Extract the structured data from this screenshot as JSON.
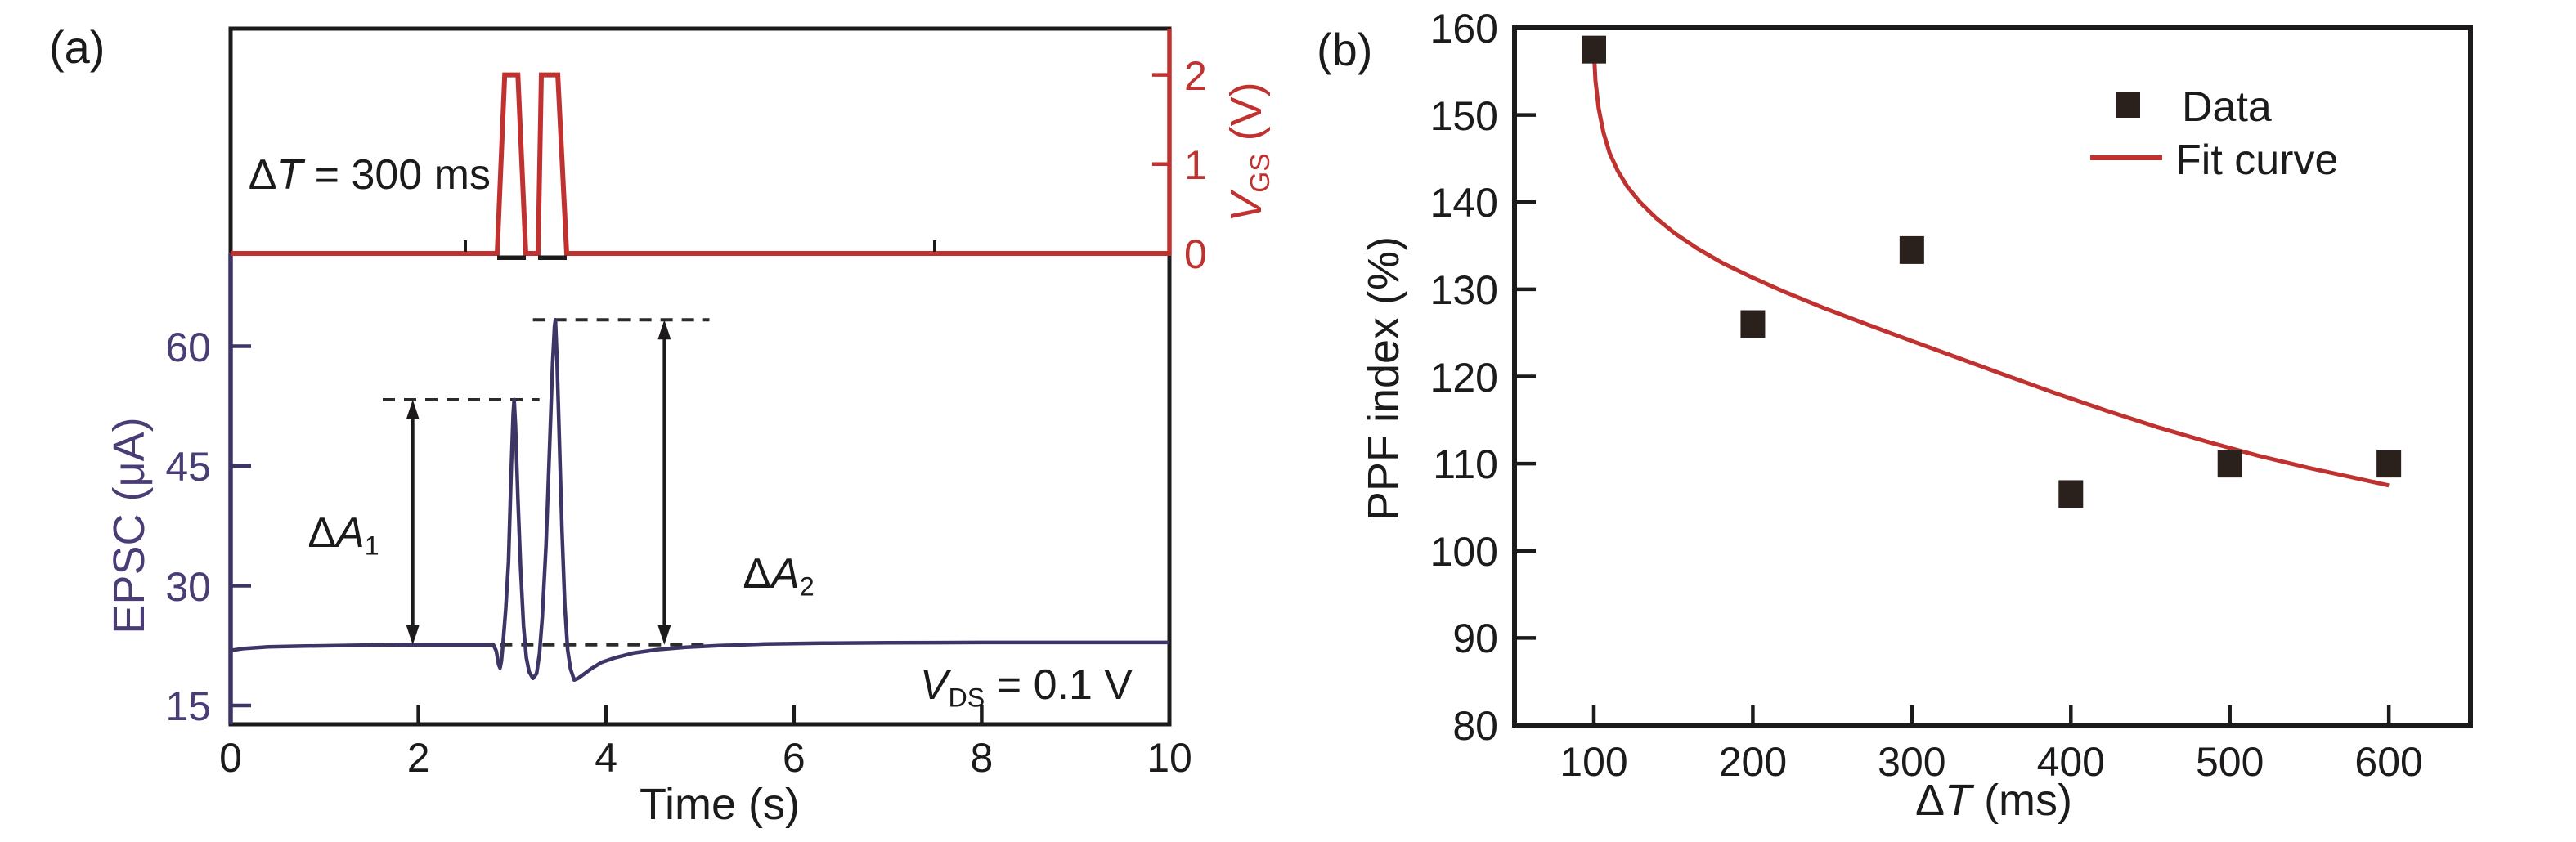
{
  "colors": {
    "red": "#c0322f",
    "purple_line": "#3e3567",
    "purple_text": "#4a3c75",
    "black": "#1c1a1a",
    "marker": "#2a211d",
    "background": "#ffffff"
  },
  "panel_a": {
    "label": "(a)",
    "pulse_annotation": {
      "sym": "Δ",
      "var": "T",
      "rest": " = 300 ms"
    },
    "vds_annotation": {
      "var": "V",
      "sub": "DS",
      "rest": " = 0.1 V"
    },
    "delta_a1": {
      "sym": "Δ",
      "var": "A",
      "sub": "1"
    },
    "delta_a2": {
      "sym": "Δ",
      "var": "A",
      "sub": "2"
    },
    "xlabel": "Time (s)",
    "ylabel_left": "EPSC (μA)",
    "ylabel_right": {
      "var": "V",
      "sub": "GS",
      "rest": " (V)"
    }
  },
  "panel_b": {
    "label": "(b)",
    "xlabel": {
      "sym": "Δ",
      "var": "T",
      "rest": " (ms)"
    },
    "ylabel": "PPF index (%)",
    "legend": {
      "data": "Data",
      "fit": "Fit curve"
    }
  },
  "chart_data": [
    {
      "panel": "a",
      "type": "line",
      "title": "",
      "xlabel": "Time (s)",
      "x_range": [
        0,
        10
      ],
      "x_ticks": [
        0,
        2,
        4,
        6,
        8,
        10
      ],
      "y_left": {
        "label": "EPSC (µA)",
        "ticks": [
          15,
          30,
          45,
          60
        ],
        "color_role": "purple"
      },
      "y_right": {
        "label": "VGS (V)",
        "ticks": [
          0,
          1,
          2
        ],
        "color_role": "red",
        "range": [
          0,
          2.5
        ]
      },
      "annotations": {
        "pulse_interval": "ΔT = 300 ms",
        "bias": "VDS = 0.1 V",
        "amp1": "ΔA1",
        "amp2": "ΔA2"
      },
      "vgs_series": {
        "name": "VGS pulses",
        "units": "V",
        "pulse_amplitude": 2,
        "points": [
          [
            0,
            0
          ],
          [
            2.84,
            0
          ],
          [
            2.92,
            2
          ],
          [
            3.06,
            2
          ],
          [
            3.145,
            0
          ],
          [
            3.275,
            0
          ],
          [
            3.31,
            2
          ],
          [
            3.485,
            2
          ],
          [
            3.58,
            0
          ],
          [
            10,
            0
          ]
        ]
      },
      "pulse_feet": [
        [
          2.84,
          3.145
        ],
        [
          3.275,
          3.58
        ]
      ],
      "baseline_minor_ticks": [
        2.5,
        7.5
      ],
      "epsc_series": {
        "name": "EPSC",
        "units": "µA",
        "points": [
          [
            0,
            21.9
          ],
          [
            0.15,
            22.15
          ],
          [
            0.4,
            22.35
          ],
          [
            0.8,
            22.45
          ],
          [
            1.4,
            22.55
          ],
          [
            2.1,
            22.6
          ],
          [
            2.6,
            22.6
          ],
          [
            2.8,
            22.6
          ],
          [
            2.83,
            21.8
          ],
          [
            2.855,
            20.1
          ],
          [
            2.87,
            19.7
          ],
          [
            2.885,
            20.6
          ],
          [
            2.9,
            22.5
          ],
          [
            2.93,
            27
          ],
          [
            2.96,
            33
          ],
          [
            2.99,
            45
          ],
          [
            3.01,
            51.5
          ],
          [
            3.02,
            53.3
          ],
          [
            3.035,
            50
          ],
          [
            3.06,
            41
          ],
          [
            3.09,
            32
          ],
          [
            3.12,
            25
          ],
          [
            3.15,
            21
          ],
          [
            3.18,
            19.2
          ],
          [
            3.22,
            18.4
          ],
          [
            3.26,
            19
          ],
          [
            3.29,
            21.5
          ],
          [
            3.32,
            26
          ],
          [
            3.36,
            35
          ],
          [
            3.4,
            48
          ],
          [
            3.43,
            58
          ],
          [
            3.45,
            62.5
          ],
          [
            3.46,
            63.3
          ],
          [
            3.475,
            59
          ],
          [
            3.5,
            49
          ],
          [
            3.53,
            37
          ],
          [
            3.56,
            27.5
          ],
          [
            3.59,
            22
          ],
          [
            3.62,
            19.6
          ],
          [
            3.66,
            18.2
          ],
          [
            3.7,
            18.4
          ],
          [
            3.76,
            18.9
          ],
          [
            3.84,
            19.6
          ],
          [
            3.95,
            20.4
          ],
          [
            4.1,
            21
          ],
          [
            4.3,
            21.6
          ],
          [
            4.55,
            22
          ],
          [
            4.85,
            22.3
          ],
          [
            5.2,
            22.5
          ],
          [
            5.7,
            22.7
          ],
          [
            6.3,
            22.8
          ],
          [
            7,
            22.85
          ],
          [
            8,
            22.9
          ],
          [
            9,
            22.9
          ],
          [
            10,
            22.9
          ]
        ]
      },
      "guides": [
        {
          "name": "peak1-level",
          "level": 53.3,
          "t_start": 1.62,
          "t_end": 3.29
        },
        {
          "name": "peak2-level",
          "level": 63.3,
          "t_start": 3.22,
          "t_end": 5.1
        },
        {
          "name": "baseline-level",
          "level": 22.6,
          "t_start": 1.51,
          "t_end": 5.1
        }
      ],
      "arrows": [
        {
          "name": "delta-a1",
          "t": 1.94,
          "from": 22.6,
          "to": 53.3
        },
        {
          "name": "delta-a2",
          "t": 4.62,
          "from": 22.6,
          "to": 63.3
        }
      ]
    },
    {
      "panel": "b",
      "type": "scatter",
      "title": "",
      "xlabel": "ΔT (ms)",
      "x_range": [
        50,
        652
      ],
      "x_ticks": [
        100,
        200,
        300,
        400,
        500,
        600
      ],
      "ylabel": "PPF index (%)",
      "y_range": [
        80,
        160
      ],
      "y_ticks": [
        80,
        90,
        100,
        110,
        120,
        130,
        140,
        150,
        160
      ],
      "legend": {
        "position": "top-right",
        "entries": [
          "Data",
          "Fit curve"
        ]
      },
      "series": [
        {
          "name": "Data",
          "type": "scatter",
          "marker": "square",
          "points": [
            [
              100,
              157.5
            ],
            [
              200,
              126
            ],
            [
              300,
              134.5
            ],
            [
              400,
              106.5
            ],
            [
              500,
              110
            ],
            [
              600,
              110
            ]
          ]
        },
        {
          "name": "Fit curve",
          "type": "line",
          "points": [
            [
              100,
              157.5
            ],
            [
              101,
              154
            ],
            [
              103,
              150.8
            ],
            [
              106,
              148
            ],
            [
              110,
              145.6
            ],
            [
              115,
              143.6
            ],
            [
              121,
              141.8
            ],
            [
              129,
              140
            ],
            [
              139,
              138.2
            ],
            [
              151,
              136.4
            ],
            [
              165,
              134.7
            ],
            [
              181,
              133
            ],
            [
              199,
              131.4
            ],
            [
              220,
              129.7
            ],
            [
              244,
              127.9
            ],
            [
              270,
              126.1
            ],
            [
              298,
              124.2
            ],
            [
              328,
              122.2
            ],
            [
              358,
              120.2
            ],
            [
              390,
              118.1
            ],
            [
              422,
              116.1
            ],
            [
              454,
              114.2
            ],
            [
              486,
              112.5
            ],
            [
              518,
              110.9
            ],
            [
              550,
              109.5
            ],
            [
              575,
              108.5
            ],
            [
              600,
              107.5
            ]
          ]
        }
      ]
    }
  ]
}
